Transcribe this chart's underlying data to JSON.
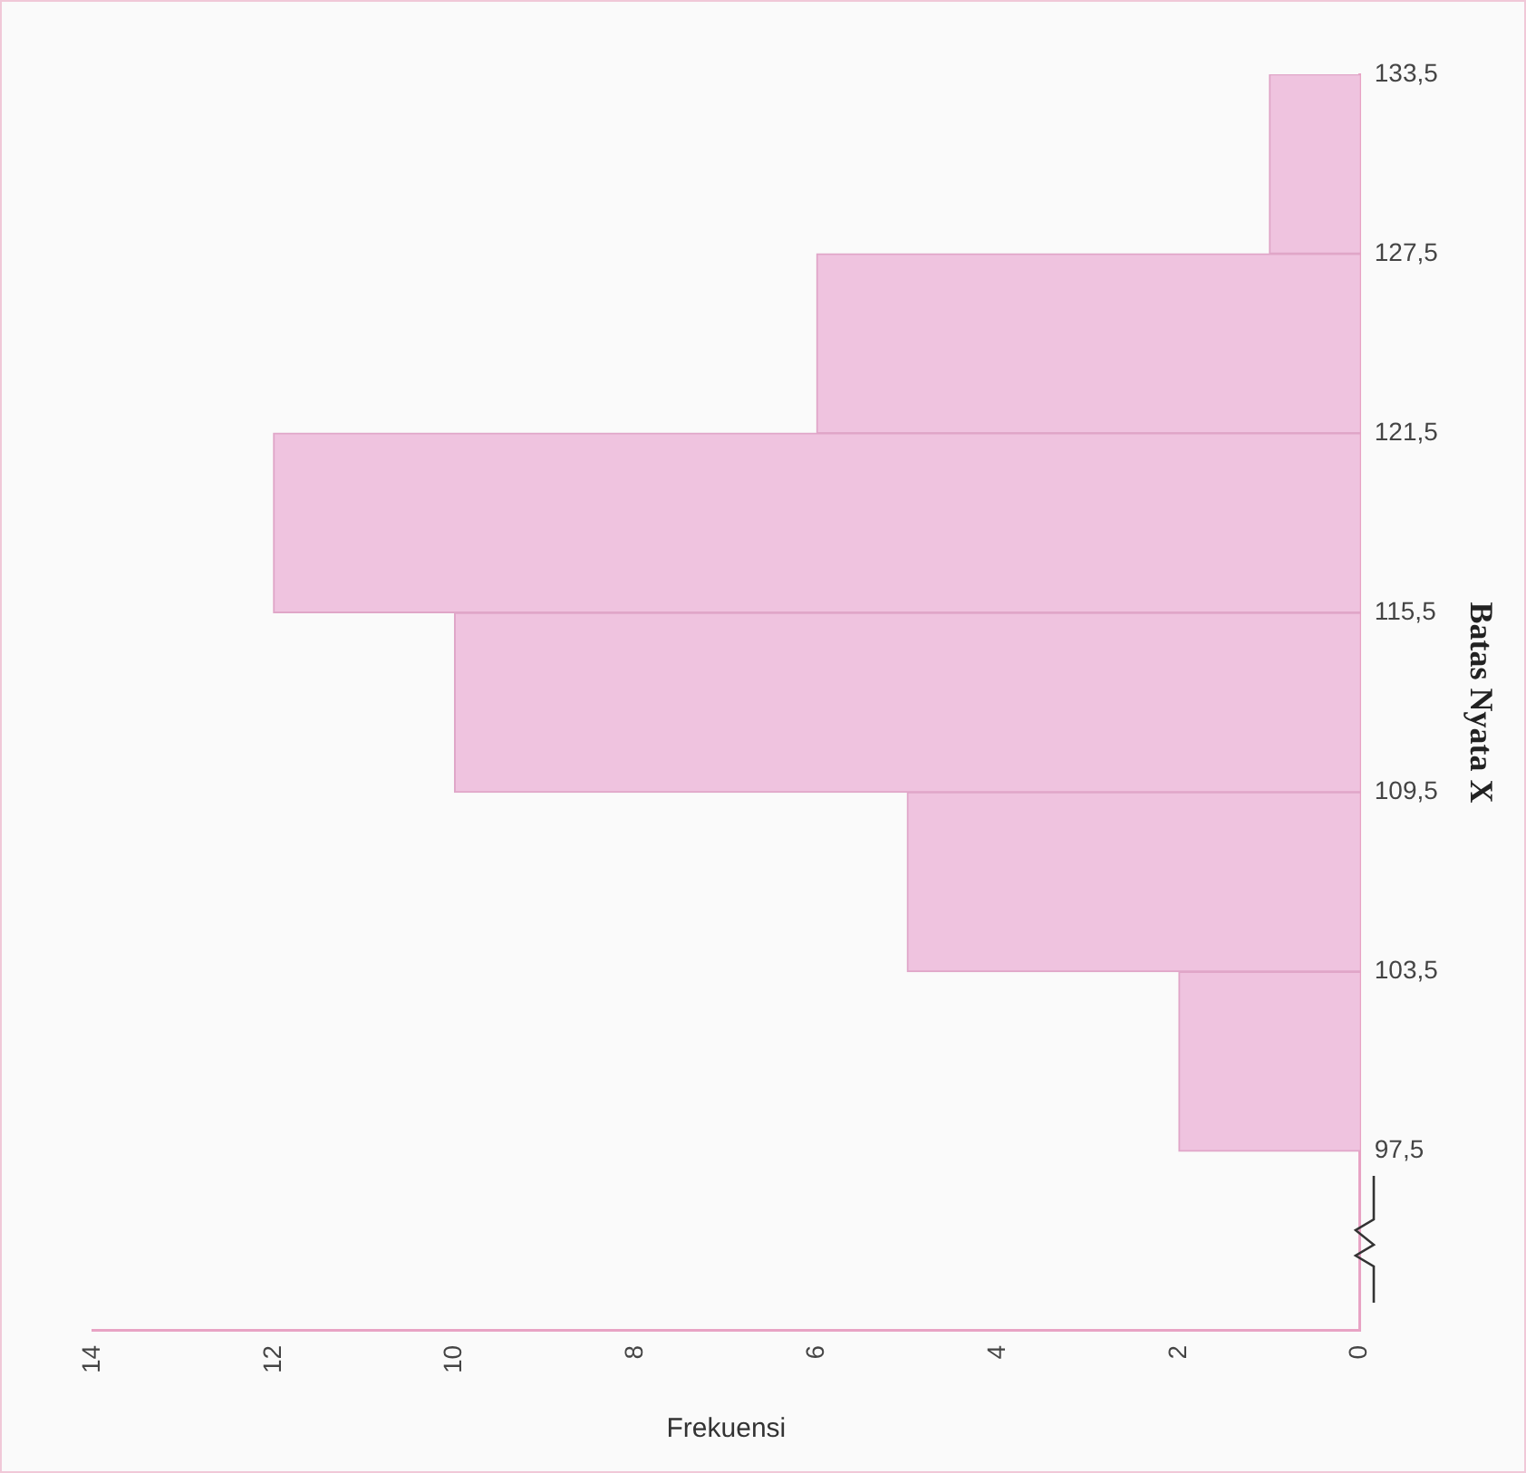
{
  "chart_data": {
    "type": "histogram",
    "orientation": "horizontal",
    "xlabel": "Frekuensi",
    "ylabel": "Batas Nyata X",
    "bins": [
      97.5,
      103.5,
      109.5,
      115.5,
      121.5,
      127.5,
      133.5
    ],
    "values": [
      2,
      5,
      10,
      12,
      6,
      1
    ],
    "color": "#efc3df",
    "xlim": [
      14,
      0
    ],
    "xticks": [
      0,
      2,
      4,
      6,
      8,
      10,
      12,
      14
    ],
    "ylim": [
      91.5,
      133.5
    ],
    "yticks": [
      {
        "value": 97.5,
        "label": "97,5"
      },
      {
        "value": 103.5,
        "label": "103,5"
      },
      {
        "value": 109.5,
        "label": "109,5"
      },
      {
        "value": 115.5,
        "label": "115,5"
      },
      {
        "value": 121.5,
        "label": "121,5"
      },
      {
        "value": 127.5,
        "label": "127,5"
      },
      {
        "value": 133.5,
        "label": "133,5"
      }
    ],
    "grid": false,
    "legend": false
  }
}
